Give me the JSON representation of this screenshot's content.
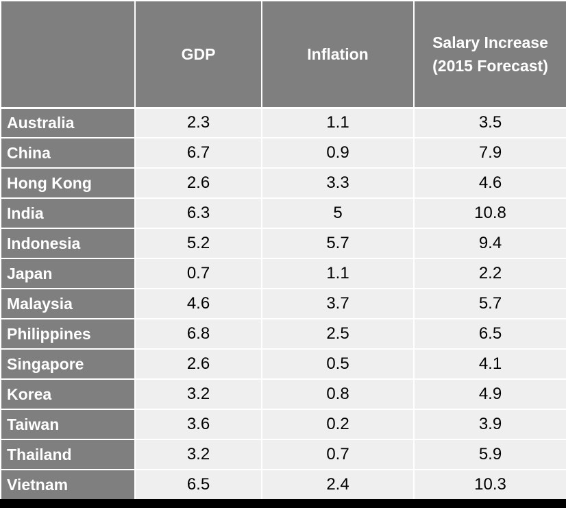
{
  "chart_data": {
    "type": "table",
    "columns": [
      "",
      "GDP",
      "Inflation",
      "Salary Increase (2015 Forecast)"
    ],
    "header_lines": {
      "salary": [
        "Salary Increase",
        "(2015 Forecast)"
      ]
    },
    "rows": [
      {
        "country": "Australia",
        "gdp": "2.3",
        "inflation": "1.1",
        "salary": "3.5"
      },
      {
        "country": "China",
        "gdp": "6.7",
        "inflation": "0.9",
        "salary": "7.9"
      },
      {
        "country": "Hong Kong",
        "gdp": "2.6",
        "inflation": "3.3",
        "salary": "4.6"
      },
      {
        "country": "India",
        "gdp": "6.3",
        "inflation": "5",
        "salary": "10.8"
      },
      {
        "country": "Indonesia",
        "gdp": "5.2",
        "inflation": "5.7",
        "salary": "9.4"
      },
      {
        "country": "Japan",
        "gdp": "0.7",
        "inflation": "1.1",
        "salary": "2.2"
      },
      {
        "country": "Malaysia",
        "gdp": "4.6",
        "inflation": "3.7",
        "salary": "5.7"
      },
      {
        "country": "Philippines",
        "gdp": "6.8",
        "inflation": "2.5",
        "salary": "6.5"
      },
      {
        "country": "Singapore",
        "gdp": "2.6",
        "inflation": "0.5",
        "salary": "4.1"
      },
      {
        "country": "Korea",
        "gdp": "3.2",
        "inflation": "0.8",
        "salary": "4.9"
      },
      {
        "country": "Taiwan",
        "gdp": "3.6",
        "inflation": "0.2",
        "salary": "3.9"
      },
      {
        "country": "Thailand",
        "gdp": "3.2",
        "inflation": "0.7",
        "salary": "5.9"
      },
      {
        "country": "Vietnam",
        "gdp": "6.5",
        "inflation": "2.4",
        "salary": "10.3"
      }
    ]
  },
  "colors": {
    "header_bg": "#7f7f7f",
    "cell_bg": "#efefef",
    "grid": "#ffffff",
    "bottom_bar": "#000000"
  }
}
